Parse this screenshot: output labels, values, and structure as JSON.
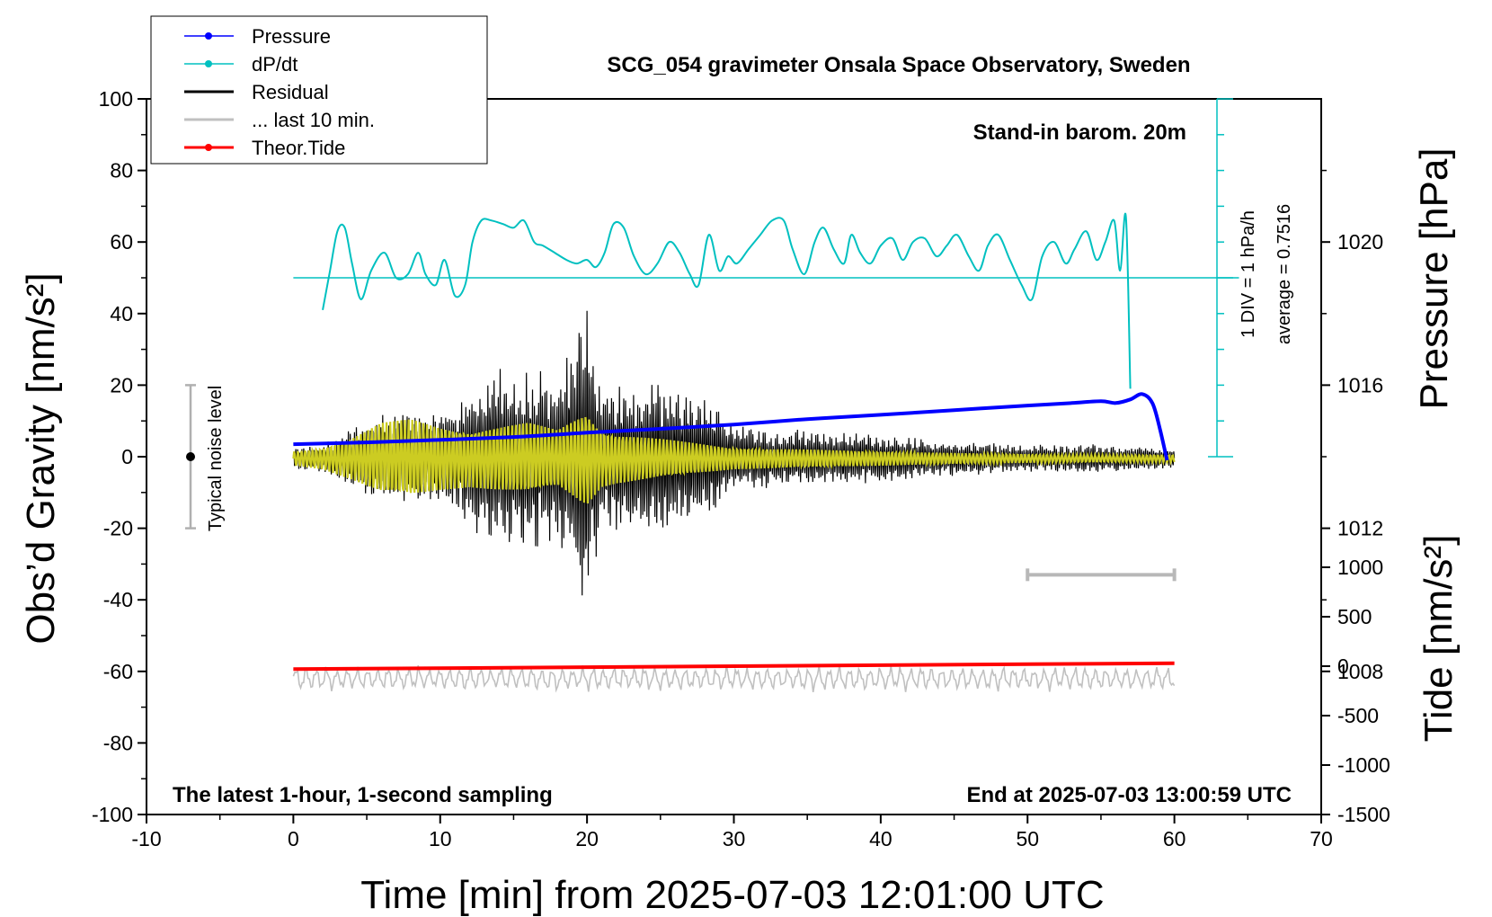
{
  "chart_data": {
    "type": "line",
    "title": "SCG_054 gravimeter Onsala Space Observatory, Sweden",
    "xlabel": "Time [min] from 2025-07-03 12:01:00 UTC",
    "ylabel_left": "Obs’d Gravity [nm/s²]",
    "ylabel_right_top": "Pressure [hPa]",
    "ylabel_right_bottom": "Tide [nm/s²]",
    "xlim": [
      -10,
      70
    ],
    "ylim_left": [
      -100,
      100
    ],
    "ylim_pressure": [
      1004,
      1024
    ],
    "ylim_tide": [
      -1500,
      1500
    ],
    "x_ticks": [
      -10,
      0,
      10,
      20,
      30,
      40,
      50,
      60,
      70
    ],
    "y_ticks_left": [
      -100,
      -80,
      -60,
      -40,
      -20,
      0,
      20,
      40,
      60,
      80,
      100
    ],
    "y_ticks_pressure": [
      1008,
      1012,
      1016,
      1020
    ],
    "y_ticks_tide": [
      -1500,
      -1000,
      -500,
      0,
      500,
      1000
    ],
    "legend_position": "top-left",
    "grid": false,
    "annotations": {
      "station": "Stand-in barom. 20m",
      "div_note": "1 DIV = 1 hPa/h",
      "average_note": "average = 0.7516",
      "noise_label": "Typical noise level",
      "bottom_left": "The latest 1-hour, 1-second sampling",
      "bottom_right": "End at 2025-07-03 13:00:59 UTC"
    },
    "noise_bar": {
      "x": -7,
      "center": 0,
      "low": -20,
      "high": 20
    },
    "interval_bar": {
      "x_start": 50,
      "x_end": 60,
      "y": -33
    },
    "series": [
      {
        "name": "Pressure",
        "color": "#0000ff",
        "axis": "pressure",
        "x": [
          0,
          5,
          10,
          15,
          20,
          25,
          30,
          35,
          40,
          45,
          50,
          53,
          55,
          56,
          57,
          57.8,
          58.5,
          59,
          59.5
        ],
        "y": [
          1014.35,
          1014.4,
          1014.47,
          1014.55,
          1014.67,
          1014.78,
          1014.9,
          1015.05,
          1015.17,
          1015.3,
          1015.43,
          1015.5,
          1015.55,
          1015.5,
          1015.6,
          1015.75,
          1015.5,
          1014.8,
          1013.9
        ]
      },
      {
        "name": "dP/dt",
        "color": "#00c0c0",
        "axis": "gravity",
        "x": [
          2,
          2.5,
          3,
          3.5,
          4,
          4.6,
          5.3,
          6.2,
          7,
          7.8,
          8.5,
          9,
          9.7,
          10.3,
          11,
          11.7,
          12.2,
          12.8,
          13.5,
          14.3,
          15,
          15.7,
          16.4,
          17,
          17.8,
          18.6,
          19.3,
          20,
          20.6,
          21.2,
          21.8,
          22.5,
          23.2,
          24,
          24.8,
          25.6,
          26.3,
          27,
          27.6,
          28.3,
          29,
          29.6,
          30.2,
          31,
          31.8,
          32.6,
          33.4,
          34,
          34.8,
          35.5,
          36.1,
          36.8,
          37.5,
          38,
          38.6,
          39.3,
          40,
          40.8,
          41.5,
          42.2,
          43,
          43.8,
          44.5,
          45.2,
          46,
          46.7,
          47.3,
          48,
          48.8,
          49.6,
          50.3,
          51,
          51.8,
          52.6,
          53.2,
          54,
          54.7,
          55.3,
          55.9,
          56.3,
          56.7,
          57
        ],
        "y": [
          41,
          52,
          63,
          64,
          54,
          44,
          52,
          57,
          50,
          51,
          57,
          51,
          48,
          55,
          45,
          48,
          60,
          66,
          66,
          65,
          64,
          66,
          60,
          59,
          57,
          55,
          54,
          55,
          53,
          57,
          65,
          64,
          56,
          51,
          54,
          60,
          57,
          51,
          48,
          62,
          52,
          56,
          54,
          58,
          62,
          66,
          66,
          58,
          51,
          60,
          64,
          58,
          54,
          62,
          57,
          54,
          59,
          61,
          55,
          60,
          61,
          56,
          59,
          62,
          56,
          52,
          59,
          62,
          55,
          48,
          44,
          56,
          60,
          54,
          58,
          63,
          55,
          60,
          66,
          52,
          67,
          19
        ]
      },
      {
        "name": "Residual",
        "color": "#000000",
        "axis": "gravity",
        "x": [
          0,
          2,
          4,
          6,
          8,
          10,
          12,
          14,
          16,
          18,
          19.5,
          20,
          21,
          22,
          24,
          26,
          28,
          30,
          35,
          40,
          45,
          50,
          55,
          60
        ],
        "envelope": [
          3,
          4,
          9,
          13,
          14,
          13,
          20,
          25,
          28,
          23,
          42,
          48,
          20,
          22,
          22,
          20,
          18,
          10,
          8,
          7,
          5,
          4,
          4,
          3
        ]
      },
      {
        "name": "... last 10 min.",
        "color": "#c0c0c0",
        "axis": "gravity",
        "x": [
          0,
          60
        ],
        "baseline": -62,
        "amplitude": 4
      },
      {
        "name": "Theor.Tide",
        "color": "#ff0000",
        "axis": "tide",
        "x": [
          0,
          60
        ],
        "y": [
          -30,
          30
        ]
      }
    ],
    "highpass_overlay": {
      "color": "#cccc22",
      "axis": "gravity",
      "x": [
        0,
        2,
        4,
        6,
        8,
        10,
        12,
        14,
        16,
        18,
        19.5,
        20,
        21,
        22,
        24,
        26,
        28,
        30,
        35,
        40,
        45,
        50,
        55,
        60
      ],
      "envelope": [
        2,
        3,
        6,
        10,
        11,
        9,
        8,
        9,
        10,
        8,
        12,
        13,
        8,
        7,
        6,
        5,
        4,
        3,
        2.5,
        2,
        1.5,
        1.2,
        1,
        1
      ]
    }
  }
}
